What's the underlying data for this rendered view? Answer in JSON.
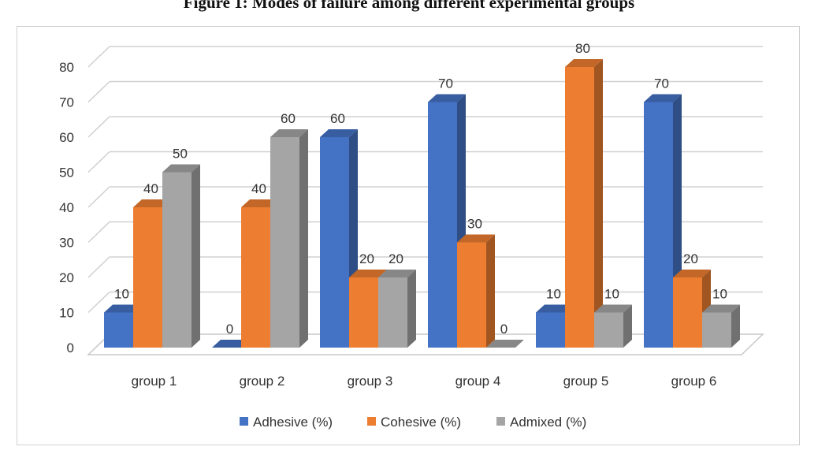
{
  "figure_title": "Figure 1: Modes of failure among different experimental groups",
  "chart_data": {
    "type": "bar",
    "title": "Figure 1: Modes of failure among different experimental groups",
    "xlabel": "",
    "ylabel": "",
    "categories": [
      "group 1",
      "group 2",
      "group 3",
      "group 4",
      "group 5",
      "group 6"
    ],
    "series": [
      {
        "name": "Adhesive (%)",
        "color": "#4472C4",
        "values": [
          10,
          0,
          60,
          70,
          10,
          70
        ]
      },
      {
        "name": "Cohesive (%)",
        "color": "#ED7D31",
        "values": [
          40,
          40,
          20,
          30,
          80,
          20
        ]
      },
      {
        "name": "Admixed (%)",
        "color": "#A5A5A5",
        "values": [
          50,
          60,
          20,
          0,
          10,
          10
        ]
      }
    ],
    "ylim": [
      0,
      80
    ],
    "yticks": [
      0,
      10,
      20,
      30,
      40,
      50,
      60,
      70,
      80
    ],
    "grid": true,
    "three_d": true,
    "data_labels": true,
    "legend_position": "bottom"
  }
}
